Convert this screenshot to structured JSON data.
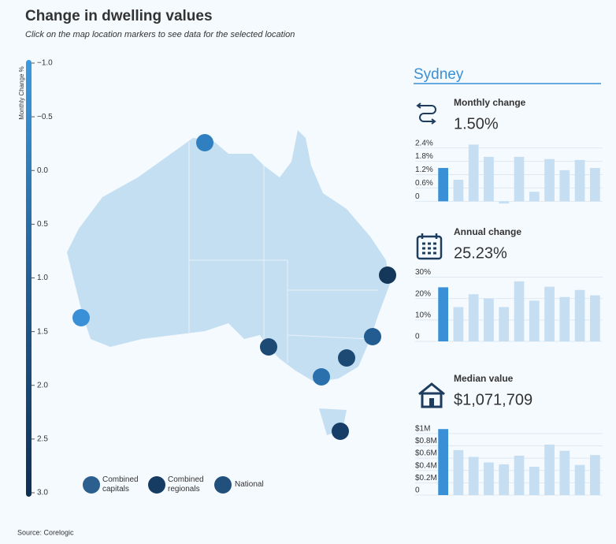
{
  "header": {
    "title": "Change in dwelling values",
    "subtitle": "Click on the map location markers to see data for the selected location"
  },
  "colorbar": {
    "label": "Monthly Change %",
    "clim": [
      -1,
      3
    ],
    "ticks": [
      {
        "value": -1,
        "label": "−1.0"
      },
      {
        "value": -0.5,
        "label": "−0.5"
      },
      {
        "value": 0,
        "label": "0.0"
      },
      0.5,
      {
        "value": 1,
        "label": "1.0"
      },
      1.5,
      {
        "value": 2,
        "label": "2.0"
      },
      2.5,
      {
        "value": 3,
        "label": "3.0"
      }
    ]
  },
  "legend": [
    "Combined capitals",
    "Combined regionals",
    "National"
  ],
  "location": "Sydney",
  "chart_data": [
    {
      "type": "bar",
      "title": "Monthly change",
      "subtitle": "1.50%",
      "categories": [
        null,
        null,
        null,
        null,
        null,
        null,
        null,
        null,
        null,
        null,
        null
      ],
      "values": [
        1.5,
        0.97,
        2.55,
        2.0,
        -0.1,
        2.0,
        0.43,
        1.9,
        1.4,
        1.86,
        1.5
      ],
      "colors": [
        "#3a90d6",
        "#c5def2",
        "#c5def2",
        "#c5def2",
        "#c5def2",
        "#c5def2",
        "#c5def2",
        "#c5def2",
        "#c5def2",
        "#c5def2",
        "#c5def2"
      ],
      "ylim": [
        -0.2,
        2.6
      ],
      "yticks": [
        0,
        {
          "value": 0.6,
          "label": "0.6%"
        },
        {
          "value": 1.2,
          "label": "1.2%"
        },
        {
          "value": 1.8,
          "label": "1.8%"
        },
        {
          "value": 2.4,
          "label": "2.4%"
        }
      ],
      "grid": true
    },
    {
      "type": "bar",
      "title": "Annual change",
      "subtitle": "25.23%",
      "categories": [
        null,
        null,
        null,
        null,
        null,
        null,
        null,
        null,
        null,
        null,
        null
      ],
      "values": [
        25.23,
        16,
        22,
        20,
        16,
        28,
        19,
        25.5,
        20.7,
        24,
        21.5
      ],
      "colors": [
        "#3a90d6",
        "#c5def2",
        "#c5def2",
        "#c5def2",
        "#c5def2",
        "#c5def2",
        "#c5def2",
        "#c5def2",
        "#c5def2",
        "#c5def2",
        "#c5def2"
      ],
      "ylim": [
        0,
        32
      ],
      "yticks": [
        0,
        {
          "value": 10,
          "label": "10%"
        },
        {
          "value": 20,
          "label": "20%"
        },
        {
          "value": 30,
          "label": "30%"
        }
      ],
      "grid": true
    },
    {
      "type": "bar",
      "title": "Median value",
      "subtitle": "$1,071,709",
      "categories": [
        null,
        null,
        null,
        null,
        null,
        null,
        null,
        null,
        null,
        null,
        null
      ],
      "values": [
        1071709,
        730000,
        620000,
        530000,
        500000,
        640000,
        460000,
        820000,
        720000,
        490000,
        650000
      ],
      "colors": [
        "#3a90d6",
        "#c5def2",
        "#c5def2",
        "#c5def2",
        "#c5def2",
        "#c5def2",
        "#c5def2",
        "#c5def2",
        "#c5def2",
        "#c5def2",
        "#c5def2"
      ],
      "ylim": [
        0,
        1100000
      ],
      "yticks": [
        0,
        {
          "value": 200000,
          "label": "$0.2M"
        },
        {
          "value": 400000,
          "label": "$0.4M"
        },
        {
          "value": 600000,
          "label": "$0.6M"
        },
        {
          "value": 800000,
          "label": "$0.8M"
        },
        {
          "value": 1000000,
          "label": "$1M"
        }
      ],
      "grid": true
    }
  ],
  "source": "Source: Corelogic"
}
